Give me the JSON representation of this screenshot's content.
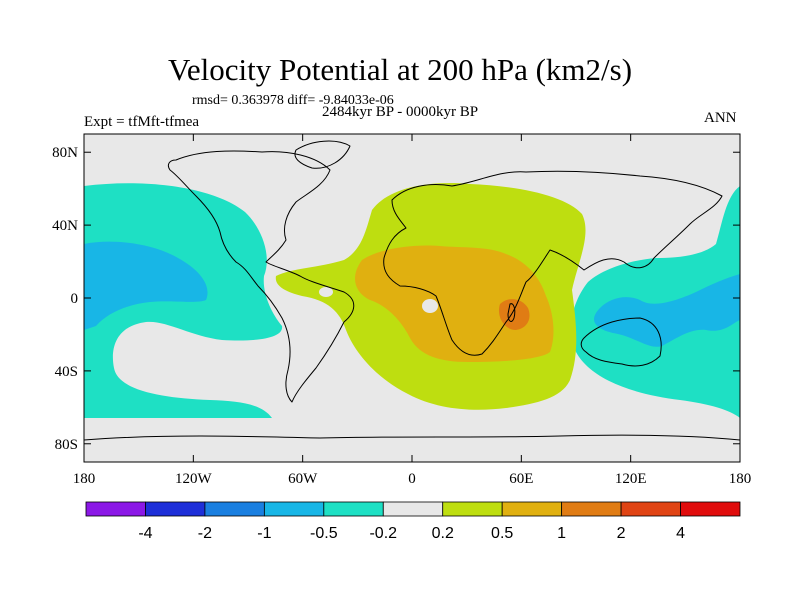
{
  "chart_data": {
    "type": "heatmap",
    "title": "Velocity Potential at 200 hPa (km2/s)",
    "stats_text": "rmsd= 0.363978 diff= -9.84033e-06",
    "left_label": "Expt = tfMft-tfmea",
    "center_label": "2484kyr BP - 0000kyr BP",
    "right_label": "ANN",
    "x_ticks": [
      "180",
      "120W",
      "60W",
      "0",
      "60E",
      "120E",
      "180"
    ],
    "y_ticks": [
      "80N",
      "40N",
      "0",
      "40S",
      "80S"
    ],
    "xlim": [
      -180,
      180
    ],
    "ylim": [
      -90,
      90
    ],
    "colorbar": {
      "labels": [
        "-4",
        "-2",
        "-1",
        "-0.5",
        "-0.2",
        "0.2",
        "0.5",
        "1",
        "2",
        "4"
      ],
      "levels": [
        -4,
        -2,
        -1,
        -0.5,
        -0.2,
        0.2,
        0.5,
        1,
        2,
        4
      ],
      "colors": [
        "#8b18e6",
        "#1e2fd8",
        "#1a7fe0",
        "#18b6e6",
        "#1ee0c4",
        "#e8e8e8",
        "#bede10",
        "#e0b010",
        "#e07c14",
        "#e04414",
        "#e00c0c"
      ]
    },
    "regions": [
      {
        "name": "Central Pacific negative",
        "sign": "negative",
        "range": "-0.5 to -1"
      },
      {
        "name": "West Pacific / Maritime Continent negative",
        "sign": "negative",
        "range": "-0.5 to -1"
      },
      {
        "name": "Atlantic / Africa / Indian Ocean positive",
        "sign": "positive",
        "range": "0.2 to 2"
      },
      {
        "name": "Madagascar maximum",
        "sign": "positive",
        "range": "1 to 2"
      }
    ]
  }
}
